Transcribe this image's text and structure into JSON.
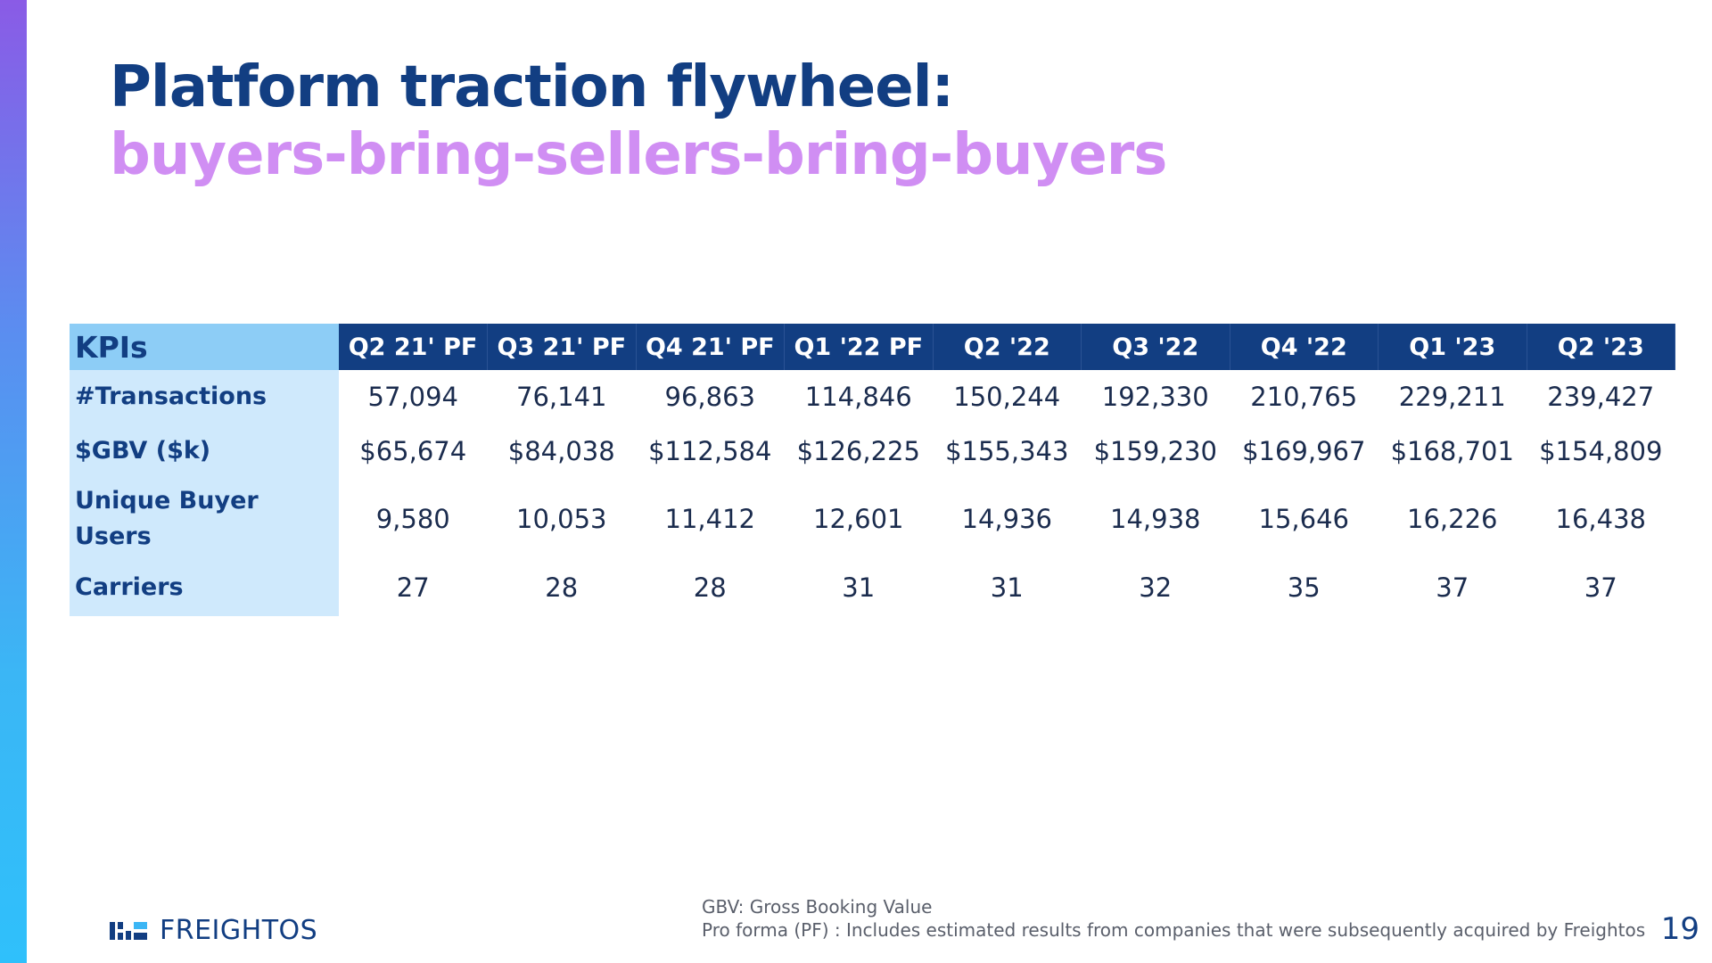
{
  "title": {
    "line1": "Platform traction flywheel:",
    "line2": "buyers-bring-sellers-bring-buyers"
  },
  "table": {
    "header_label": "KPIs",
    "columns": [
      "Q2 21' PF",
      "Q3 21' PF",
      "Q4 21' PF",
      "Q1 '22 PF",
      "Q2 '22",
      "Q3 '22",
      "Q4 '22",
      "Q1 '23",
      "Q2 '23"
    ],
    "rows": [
      {
        "label": "#Transactions",
        "values": [
          "57,094",
          "76,141",
          "96,863",
          "114,846",
          "150,244",
          "192,330",
          "210,765",
          "229,211",
          "239,427"
        ]
      },
      {
        "label": "$GBV ($k)",
        "values": [
          "$65,674",
          "$84,038",
          "$112,584",
          "$126,225",
          "$155,343",
          "$159,230",
          "$169,967",
          "$168,701",
          "$154,809"
        ]
      },
      {
        "label": "Unique Buyer Users",
        "values": [
          "9,580",
          "10,053",
          "11,412",
          "12,601",
          "14,936",
          "14,938",
          "15,646",
          "16,226",
          "16,438"
        ]
      },
      {
        "label": "Carriers",
        "values": [
          "27",
          "28",
          "28",
          "31",
          "31",
          "32",
          "35",
          "37",
          "37"
        ]
      }
    ]
  },
  "logo": {
    "text": "FREIGHTOS",
    "icon": "freightos-logo-icon"
  },
  "footnotes": {
    "line1": "GBV: Gross Booking Value",
    "line2": "Pro forma (PF) : Includes estimated results from companies that were subsequently acquired by Freightos"
  },
  "page_number": "19",
  "colors": {
    "navy": "#123e82",
    "lavender": "#d08ef3",
    "header_light_blue": "#8dcdf6",
    "row_label_bg": "#cfe9fc",
    "accent_gradient": [
      "#8a5be6",
      "#2fc0fb"
    ]
  }
}
